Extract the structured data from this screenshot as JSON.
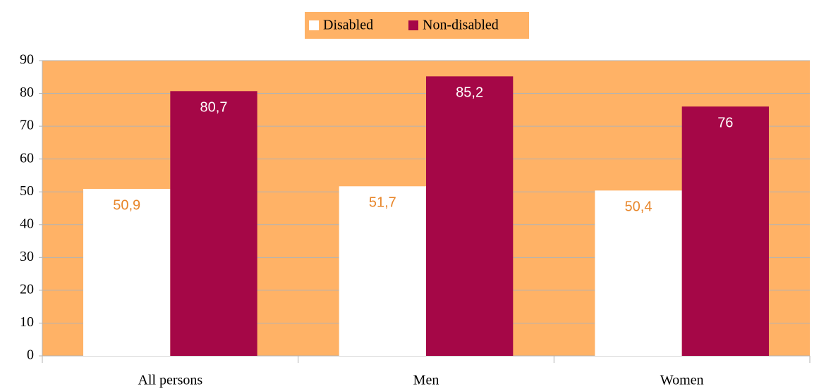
{
  "chart_data": {
    "type": "bar",
    "categories": [
      "All persons",
      "Men",
      "Women"
    ],
    "series": [
      {
        "name": "Disabled",
        "color": "#ffffff",
        "values": [
          50.9,
          51.7,
          50.4
        ],
        "value_labels": [
          "50,9",
          "51,7",
          "50,4"
        ]
      },
      {
        "name": "Non-disabled",
        "color": "#a50747",
        "values": [
          80.7,
          85.2,
          76
        ],
        "value_labels": [
          "80,7",
          "85,2",
          "76"
        ]
      }
    ],
    "ylim": [
      0,
      90
    ],
    "yticks": [
      0,
      10,
      20,
      30,
      40,
      50,
      60,
      70,
      80,
      90
    ],
    "grid": true,
    "background": "#ffb266",
    "legend": "top"
  }
}
